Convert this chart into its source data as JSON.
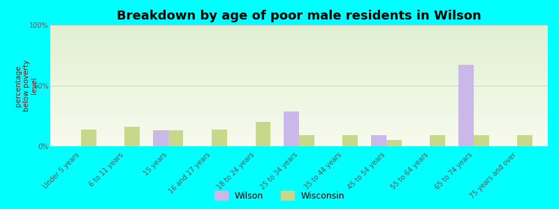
{
  "title": "Breakdown by age of poor male residents in Wilson",
  "categories": [
    "Under 5 years",
    "6 to 11 years",
    "15 years",
    "16 and 17 years",
    "18 to 24 years",
    "25 to 34 years",
    "35 to 44 years",
    "45 to 54 years",
    "55 to 64 years",
    "65 to 74 years",
    "75 years and over"
  ],
  "wilson_values": [
    0,
    0,
    13,
    0,
    0,
    29,
    0,
    9,
    0,
    67,
    0
  ],
  "wisconsin_values": [
    14,
    16,
    13,
    14,
    20,
    9,
    9,
    5,
    9,
    9,
    9
  ],
  "wilson_color": "#c9b8e8",
  "wisconsin_color": "#c8d88a",
  "ylabel": "percentage\nbelow poverty\nlevel",
  "ylim": [
    0,
    100
  ],
  "yticks": [
    0,
    50,
    100
  ],
  "ytick_labels": [
    "0%",
    "50%",
    "100%"
  ],
  "background_color": "#00ffff",
  "bar_width": 0.35,
  "title_fontsize": 13,
  "axis_label_fontsize": 7.5,
  "tick_label_fontsize": 7,
  "legend_fontsize": 9
}
